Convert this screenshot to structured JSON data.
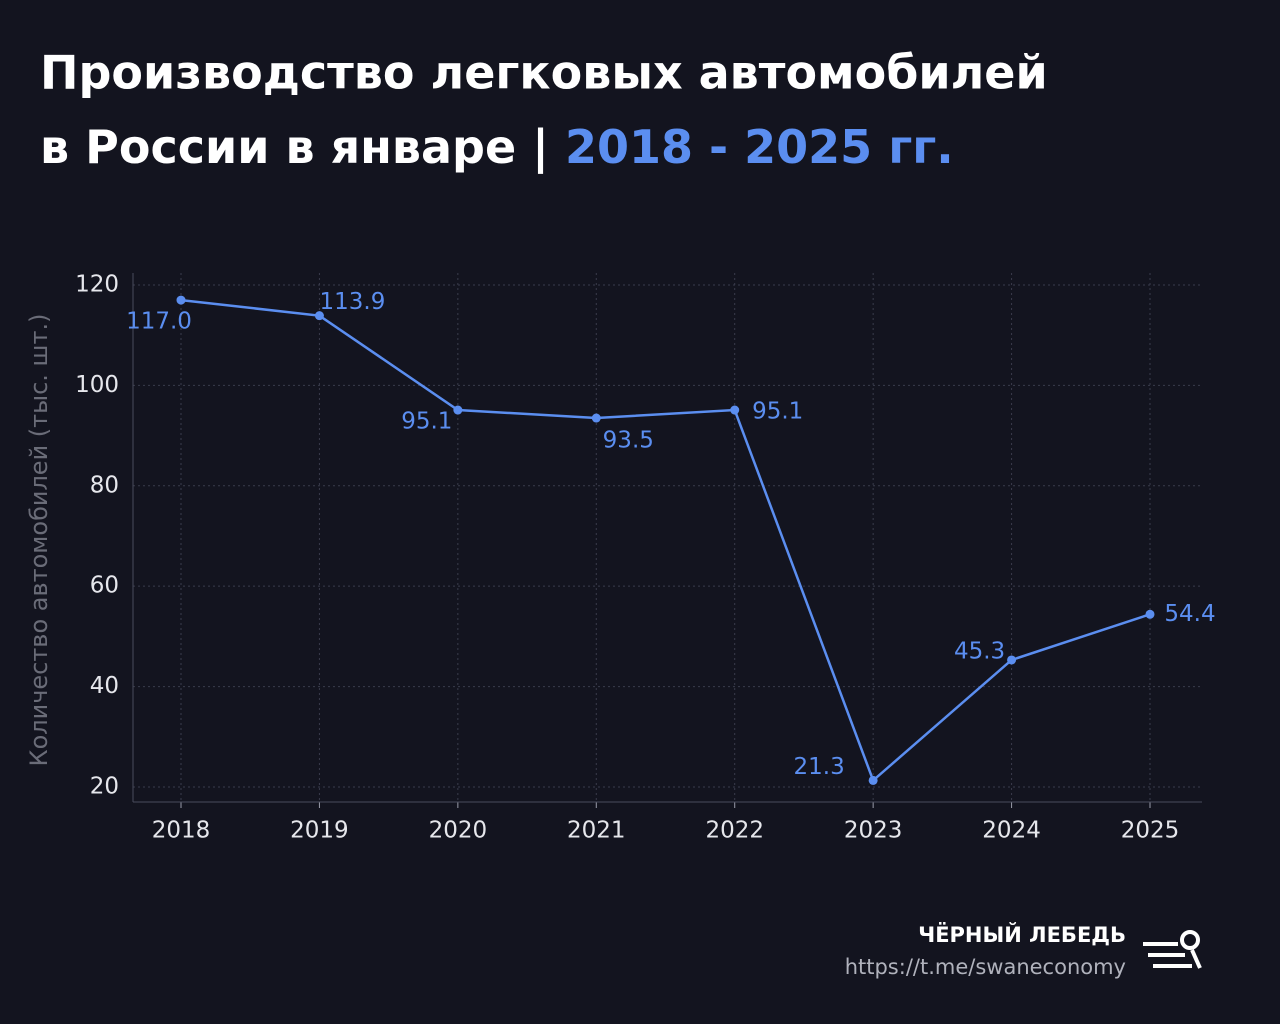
{
  "chart_data": {
    "type": "line",
    "title_lines": [
      "Производство легковых автомобилей",
      "в России в январе |"
    ],
    "title_highlight": "2018 - 2025 гг.",
    "y_label": "Количество автомобилей (тыс. шт.)",
    "categories": [
      "2018",
      "2019",
      "2020",
      "2021",
      "2022",
      "2023",
      "2024",
      "2025"
    ],
    "values": [
      117,
      113.9,
      95.1,
      93.5,
      95.1,
      21.3,
      45.3,
      54.4
    ],
    "value_labels": [
      "117.0",
      "113.9",
      "95.1",
      "93.5",
      "95.1",
      "21.3",
      "45.3",
      "54.4"
    ],
    "color": "#5b8ef0",
    "ylim": [
      17,
      122.4
    ],
    "yticks": [
      20,
      40,
      60,
      80,
      100,
      120
    ],
    "grid": true,
    "footer": {
      "brand": "ЧЁРНЫЙ ЛЕБЕДЬ",
      "url": "https://t.me/swaneconomy"
    }
  }
}
